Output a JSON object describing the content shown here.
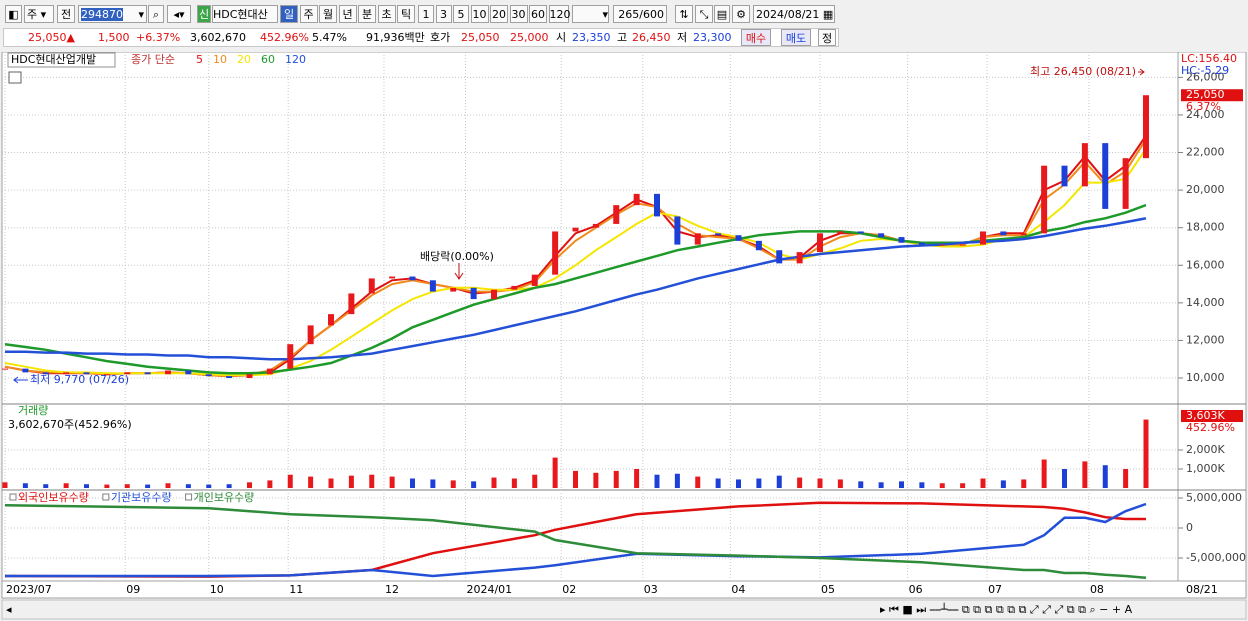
{
  "toolbar": {
    "market": "주",
    "prev": "전",
    "code": "294870",
    "name": "HDC현대산업",
    "periods": [
      "일",
      "주",
      "월",
      "년",
      "분",
      "초",
      "틱"
    ],
    "minutes": [
      "1",
      "3",
      "5",
      "10",
      "20",
      "30",
      "60",
      "120"
    ],
    "count": "265",
    "max": "/600",
    "date": "2024/08/21"
  },
  "quote_bar": {
    "price": "25,050▲",
    "change": "1,500",
    "change_pct": "+6.37%",
    "volume": "3,602,670",
    "volume_pct": "452.96%",
    "turnover_pct": "5.47%",
    "amount": "91,936백만",
    "bid_label": "호가",
    "ask": "25,050",
    "bid": "25,000",
    "open_label": "시",
    "open": "23,350",
    "high_label": "고",
    "high": "26,450",
    "low_label": "저",
    "low": "23,300",
    "buy": "매수",
    "sell": "매도",
    "fix": "정"
  },
  "chart_data": [
    {
      "type": "candlestick",
      "title": "HDC현대산업개발",
      "ma_label": "종가 단순",
      "up_color": "#e8191c",
      "down_color": "#1c3fd8",
      "values": [
        10500,
        10300,
        10200,
        10300,
        10200,
        10200,
        10300,
        10200,
        10400,
        10200,
        10100,
        10000,
        10200,
        10500,
        11800,
        12800,
        13400,
        14500,
        15300,
        15400,
        15200,
        14600,
        14800,
        14200,
        14700,
        14900,
        15500,
        17800,
        18000,
        18200,
        19200,
        19800,
        18600,
        17100,
        17700,
        17600,
        17300,
        16800,
        16100,
        16700,
        17700,
        17800,
        17700,
        17500,
        17200,
        17100,
        17100,
        17100,
        17800,
        17600,
        17700,
        21300,
        20200,
        22500,
        19000,
        21700,
        25050
      ],
      "series": [
        {
          "name": "5",
          "color": "#e01010",
          "values": [
            10600,
            10400,
            10250,
            10250,
            10250,
            10200,
            10250,
            10250,
            10300,
            10250,
            10150,
            10100,
            10150,
            10300,
            11000,
            12000,
            12800,
            13700,
            14600,
            15200,
            15300,
            15000,
            14800,
            14500,
            14600,
            14800,
            15200,
            16500,
            17700,
            18100,
            18800,
            19500,
            19100,
            17800,
            17500,
            17600,
            17400,
            17000,
            16300,
            16400,
            17300,
            17700,
            17700,
            17600,
            17300,
            17100,
            17100,
            17100,
            17500,
            17700,
            17700,
            20000,
            20500,
            21800,
            20500,
            21300,
            22900
          ]
        },
        {
          "name": "10",
          "color": "#f08a1c",
          "values": [
            10600,
            10400,
            10300,
            10300,
            10250,
            10200,
            10250,
            10250,
            10300,
            10250,
            10150,
            10100,
            10200,
            10400,
            11100,
            12000,
            12800,
            13600,
            14400,
            15000,
            15200,
            15000,
            14800,
            14600,
            14600,
            14700,
            15100,
            16300,
            17300,
            18000,
            18700,
            19300,
            19100,
            18200,
            17600,
            17500,
            17400,
            16900,
            16300,
            16300,
            17000,
            17500,
            17700,
            17600,
            17300,
            17100,
            17100,
            17100,
            17500,
            17600,
            17600,
            19500,
            20300,
            21500,
            20300,
            21000,
            22700
          ]
        },
        {
          "name": "20",
          "color": "#f5e600",
          "values": [
            10800,
            10600,
            10400,
            10300,
            10300,
            10250,
            10250,
            10250,
            10250,
            10250,
            10200,
            10150,
            10150,
            10200,
            10500,
            10900,
            11500,
            12200,
            12900,
            13600,
            14200,
            14600,
            14800,
            14800,
            14700,
            14700,
            14800,
            15300,
            16000,
            16800,
            17500,
            18200,
            18800,
            18600,
            18100,
            17700,
            17500,
            17200,
            16600,
            16300,
            16600,
            16900,
            17300,
            17400,
            17300,
            17100,
            17000,
            17000,
            17100,
            17400,
            17500,
            18300,
            19200,
            20400,
            20400,
            20600,
            22200
          ]
        },
        {
          "name": "60",
          "color": "#1e9a2a",
          "values": [
            11800,
            11650,
            11500,
            11300,
            11100,
            10900,
            10750,
            10600,
            10500,
            10400,
            10300,
            10250,
            10250,
            10300,
            10450,
            10600,
            10800,
            11200,
            11600,
            12100,
            12700,
            13100,
            13500,
            13900,
            14200,
            14500,
            14800,
            15000,
            15300,
            15600,
            15900,
            16200,
            16500,
            16800,
            17000,
            17200,
            17400,
            17600,
            17700,
            17800,
            17800,
            17800,
            17700,
            17500,
            17300,
            17200,
            17200,
            17200,
            17300,
            17400,
            17500,
            17800,
            18000,
            18300,
            18500,
            18800,
            19200
          ]
        },
        {
          "name": "120",
          "color": "#2450d8",
          "values": [
            11400,
            11400,
            11350,
            11350,
            11300,
            11300,
            11250,
            11250,
            11200,
            11200,
            11100,
            11100,
            11050,
            11000,
            11000,
            11050,
            11100,
            11200,
            11300,
            11500,
            11700,
            11900,
            12100,
            12300,
            12550,
            12800,
            13050,
            13300,
            13550,
            13850,
            14150,
            14450,
            14700,
            15000,
            15300,
            15550,
            15800,
            16050,
            16300,
            16450,
            16600,
            16700,
            16800,
            16900,
            17000,
            17050,
            17100,
            17200,
            17250,
            17300,
            17400,
            17550,
            17750,
            17950,
            18100,
            18300,
            18500
          ]
        }
      ],
      "xlim": [
        0,
        56
      ],
      "xticks": [
        {
          "value": 0,
          "label": "2023/07"
        },
        {
          "value": 5.9,
          "label": "09"
        },
        {
          "value": 10,
          "label": "10"
        },
        {
          "value": 13.9,
          "label": "11"
        },
        {
          "value": 18.6,
          "label": "12"
        },
        {
          "value": 22.6,
          "label": "2024/01"
        },
        {
          "value": 27.3,
          "label": "02"
        },
        {
          "value": 31.3,
          "label": "03"
        },
        {
          "value": 35.6,
          "label": "04"
        },
        {
          "value": 40,
          "label": "05"
        },
        {
          "value": 44.3,
          "label": "06"
        },
        {
          "value": 48.2,
          "label": "07"
        },
        {
          "value": 53.2,
          "label": "08"
        }
      ],
      "last_date": "08/21",
      "ylim": [
        8670,
        27350
      ],
      "yticks": [
        {
          "value": 10000,
          "label": "10,000"
        },
        {
          "value": 12000,
          "label": "12,000"
        },
        {
          "value": 14000,
          "label": "14,000"
        },
        {
          "value": 16000,
          "label": "16,000"
        },
        {
          "value": 18000,
          "label": "18,000"
        },
        {
          "value": 20000,
          "label": "20,000"
        },
        {
          "value": 22000,
          "label": "22,000"
        },
        {
          "value": 24000,
          "label": "24,000"
        },
        {
          "value": 26000,
          "label": "26,000"
        }
      ],
      "grid": true,
      "annotations": {
        "high": "최고 26,450 (08/21)",
        "low": "최저 9,770 (07/26)",
        "dividend": "배당락(0.00%)",
        "lc": "LC:156.40",
        "hc": "HC:-5.29",
        "last_price": "25,050",
        "last_change": "6.37%"
      }
    },
    {
      "type": "bar",
      "title": "거래량",
      "subtitle": "3,602,670주(452.96%)",
      "values": [
        300,
        250,
        200,
        250,
        200,
        180,
        200,
        180,
        250,
        200,
        180,
        200,
        300,
        400,
        700,
        600,
        500,
        650,
        700,
        600,
        500,
        450,
        400,
        350,
        550,
        500,
        700,
        1600,
        900,
        800,
        900,
        1000,
        700,
        750,
        600,
        500,
        450,
        500,
        650,
        550,
        500,
        450,
        350,
        300,
        350,
        300,
        250,
        250,
        500,
        400,
        450,
        1500,
        1000,
        1400,
        1200,
        1000,
        3603
      ],
      "ylim": [
        0,
        4370
      ],
      "yticks": [
        {
          "value": 1000,
          "label": "1,000K"
        },
        {
          "value": 2000,
          "label": "2,000K"
        }
      ],
      "last_label": "3,603K",
      "last_pct": "452.96%"
    },
    {
      "type": "line",
      "x": [
        0,
        10,
        14,
        18,
        21,
        26,
        27,
        31,
        36,
        40,
        45,
        50,
        51,
        52,
        53,
        54,
        55,
        56
      ],
      "series": [
        {
          "name": "외국인보유수량",
          "color": "#e01010",
          "values": [
            -8000000,
            -8100000,
            -7900000,
            -7000000,
            -4200000,
            -1200000,
            -300000,
            2300000,
            3600000,
            4200000,
            4100000,
            3600000,
            3500000,
            3200000,
            2600000,
            1800000,
            1500000,
            1500000
          ]
        },
        {
          "name": "기관보유수량",
          "color": "#2450d8",
          "values": [
            -8000000,
            -8000000,
            -7900000,
            -7000000,
            -8000000,
            -6600000,
            -6200000,
            -4300000,
            -4700000,
            -4900000,
            -4300000,
            -2800000,
            -1200000,
            1700000,
            1700000,
            1000000,
            2800000,
            4000000
          ]
        },
        {
          "name": "개인보유수량",
          "color": "#2e8b3a",
          "values": [
            3800000,
            3300000,
            2300000,
            1800000,
            1300000,
            -600000,
            -2000000,
            -4200000,
            -4600000,
            -5000000,
            -5700000,
            -7000000,
            -7000000,
            -7500000,
            -7500000,
            -7800000,
            -8000000,
            -8300000
          ]
        }
      ],
      "xlim": [
        0,
        56
      ],
      "ylim": [
        -8670000,
        6170000
      ],
      "yticks": [
        {
          "value": 5000000,
          "label": "5,000,000"
        },
        0,
        {
          "value": -5000000,
          "label": "-5,000,000"
        }
      ]
    }
  ]
}
